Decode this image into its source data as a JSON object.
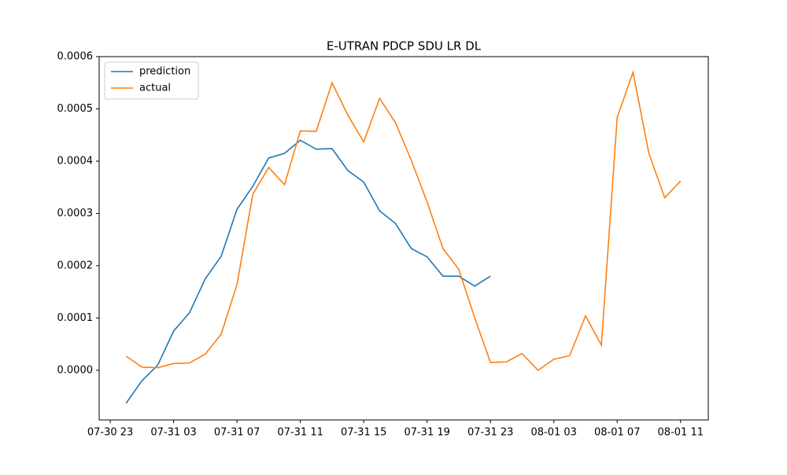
{
  "chart_data": {
    "type": "line",
    "title": "E-UTRAN PDCP SDU LR DL",
    "x": [
      "07-31 00",
      "07-31 01",
      "07-31 02",
      "07-31 03",
      "07-31 04",
      "07-31 05",
      "07-31 06",
      "07-31 07",
      "07-31 08",
      "07-31 09",
      "07-31 10",
      "07-31 11",
      "07-31 12",
      "07-31 13",
      "07-31 14",
      "07-31 15",
      "07-31 16",
      "07-31 17",
      "07-31 18",
      "07-31 19",
      "07-31 20",
      "07-31 21",
      "07-31 22",
      "07-31 23",
      "08-01 00",
      "08-01 01",
      "08-01 02",
      "08-01 03",
      "08-01 04",
      "08-01 05",
      "08-01 06",
      "08-01 07",
      "08-01 08",
      "08-01 09",
      "08-01 10",
      "08-01 11"
    ],
    "series": [
      {
        "name": "prediction",
        "color": "#1f77b4",
        "values": [
          -6.3e-05,
          -2e-05,
          1e-05,
          7.5e-05,
          0.00011,
          0.000175,
          0.000218,
          0.000308,
          0.000352,
          0.000406,
          0.000415,
          0.00044,
          0.000423,
          0.000424,
          0.000382,
          0.00036,
          0.000305,
          0.000281,
          0.000233,
          0.000217,
          0.00018,
          0.00018,
          0.000161,
          0.00018,
          null,
          null,
          null,
          null,
          null,
          null,
          null,
          null,
          null,
          null,
          null,
          null
        ]
      },
      {
        "name": "actual",
        "color": "#ff7f0e",
        "values": [
          2.7e-05,
          6e-06,
          5e-06,
          1.3e-05,
          1.4e-05,
          3.1e-05,
          6.9e-05,
          0.000164,
          0.000337,
          0.000388,
          0.000355,
          0.000458,
          0.000457,
          0.00055,
          0.000488,
          0.000437,
          0.00052,
          0.000474,
          0.000402,
          0.000322,
          0.000233,
          0.000193,
          0.000101,
          1.5e-05,
          1.6e-05,
          3.2e-05,
          0.0,
          2.1e-05,
          2.8e-05,
          0.000104,
          4.8e-05,
          0.000484,
          0.00057,
          0.000415,
          0.00033,
          0.000362
        ]
      }
    ],
    "xlim": [
      "07-30 22:18",
      "08-01 12:45"
    ],
    "xticks": [
      "07-30 23",
      "07-31 03",
      "07-31 07",
      "07-31 11",
      "07-31 15",
      "07-31 19",
      "07-31 23",
      "08-01 03",
      "08-01 07",
      "08-01 11"
    ],
    "ylim": [
      -9.5e-05,
      0.0006
    ],
    "yticks": [
      {
        "value": 0,
        "label": "0.0000"
      },
      {
        "value": 0.0001,
        "label": "0.0001"
      },
      {
        "value": 0.0002,
        "label": "0.0002"
      },
      {
        "value": 0.0003,
        "label": "0.0003"
      },
      {
        "value": 0.0004,
        "label": "0.0004"
      },
      {
        "value": 0.0005,
        "label": "0.0005"
      },
      {
        "value": 0.0006,
        "label": "0.0006"
      }
    ],
    "legend": "upper left",
    "grid": false
  }
}
